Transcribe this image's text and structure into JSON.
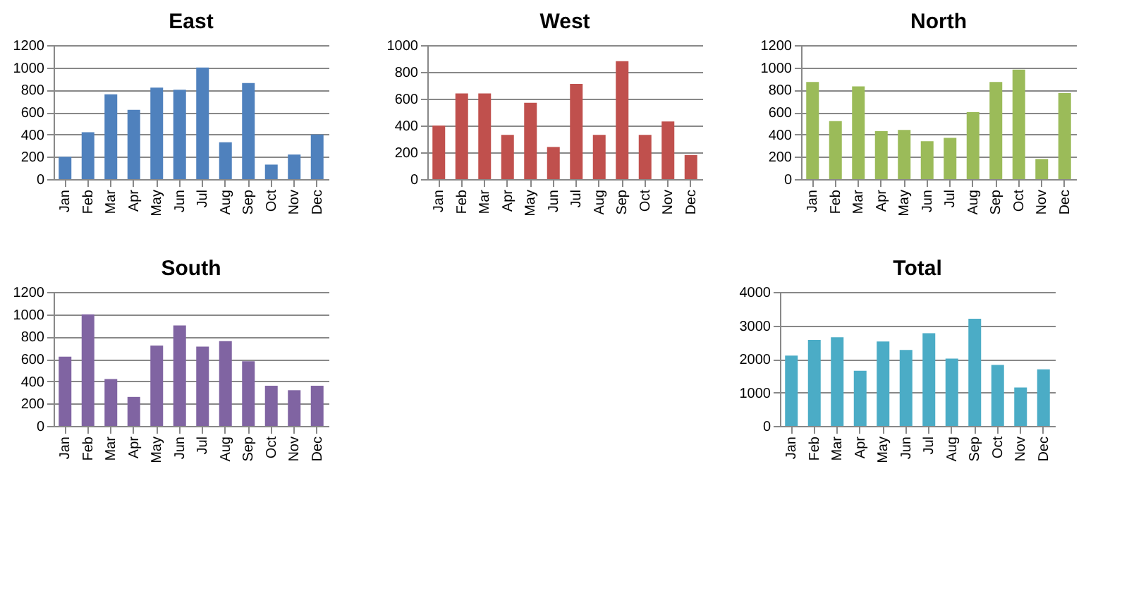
{
  "chart_data": [
    {
      "type": "bar",
      "title": "East",
      "categories": [
        "Jan",
        "Feb",
        "Mar",
        "Apr",
        "May",
        "Jun",
        "Jul",
        "Aug",
        "Sep",
        "Oct",
        "Nov",
        "Dec"
      ],
      "values": [
        200,
        420,
        760,
        620,
        820,
        800,
        1000,
        330,
        860,
        130,
        220,
        400
      ],
      "color": "#4f81bd",
      "ylim": [
        0,
        1200
      ],
      "yticks": [
        0,
        200,
        400,
        600,
        800,
        1000,
        1200
      ],
      "grid": "y"
    },
    {
      "type": "bar",
      "title": "West",
      "categories": [
        "Jan",
        "Feb",
        "Mar",
        "Apr",
        "May",
        "Jun",
        "Jul",
        "Aug",
        "Sep",
        "Oct",
        "Nov",
        "Dec"
      ],
      "values": [
        400,
        640,
        640,
        330,
        570,
        240,
        710,
        330,
        880,
        330,
        430,
        180
      ],
      "color": "#c0504d",
      "ylim": [
        0,
        1000
      ],
      "yticks": [
        0,
        200,
        400,
        600,
        800,
        1000
      ],
      "grid": "y"
    },
    {
      "type": "bar",
      "title": "North",
      "categories": [
        "Jan",
        "Feb",
        "Mar",
        "Apr",
        "May",
        "Jun",
        "Jul",
        "Aug",
        "Sep",
        "Oct",
        "Nov",
        "Dec"
      ],
      "values": [
        870,
        520,
        830,
        430,
        440,
        340,
        370,
        600,
        870,
        980,
        180,
        770
      ],
      "color": "#9bbb59",
      "ylim": [
        0,
        1200
      ],
      "yticks": [
        0,
        200,
        400,
        600,
        800,
        1000,
        1200
      ],
      "grid": "y"
    },
    {
      "type": "bar",
      "title": "South",
      "categories": [
        "Jan",
        "Feb",
        "Mar",
        "Apr",
        "May",
        "Jun",
        "Jul",
        "Aug",
        "Sep",
        "Oct",
        "Nov",
        "Dec"
      ],
      "values": [
        620,
        1000,
        420,
        260,
        720,
        900,
        710,
        760,
        580,
        360,
        320,
        360
      ],
      "color": "#8064a2",
      "ylim": [
        0,
        1200
      ],
      "yticks": [
        0,
        200,
        400,
        600,
        800,
        1000,
        1200
      ],
      "grid": "y"
    },
    {
      "type": "bar",
      "title": "Total",
      "categories": [
        "Jan",
        "Feb",
        "Mar",
        "Apr",
        "May",
        "Jun",
        "Jul",
        "Aug",
        "Sep",
        "Oct",
        "Nov",
        "Dec"
      ],
      "values": [
        2100,
        2570,
        2650,
        1650,
        2520,
        2270,
        2770,
        2010,
        3200,
        1820,
        1150,
        1690
      ],
      "color": "#4bacc6",
      "ylim": [
        0,
        4000
      ],
      "yticks": [
        0,
        1000,
        2000,
        3000,
        4000
      ],
      "grid": "y"
    }
  ]
}
